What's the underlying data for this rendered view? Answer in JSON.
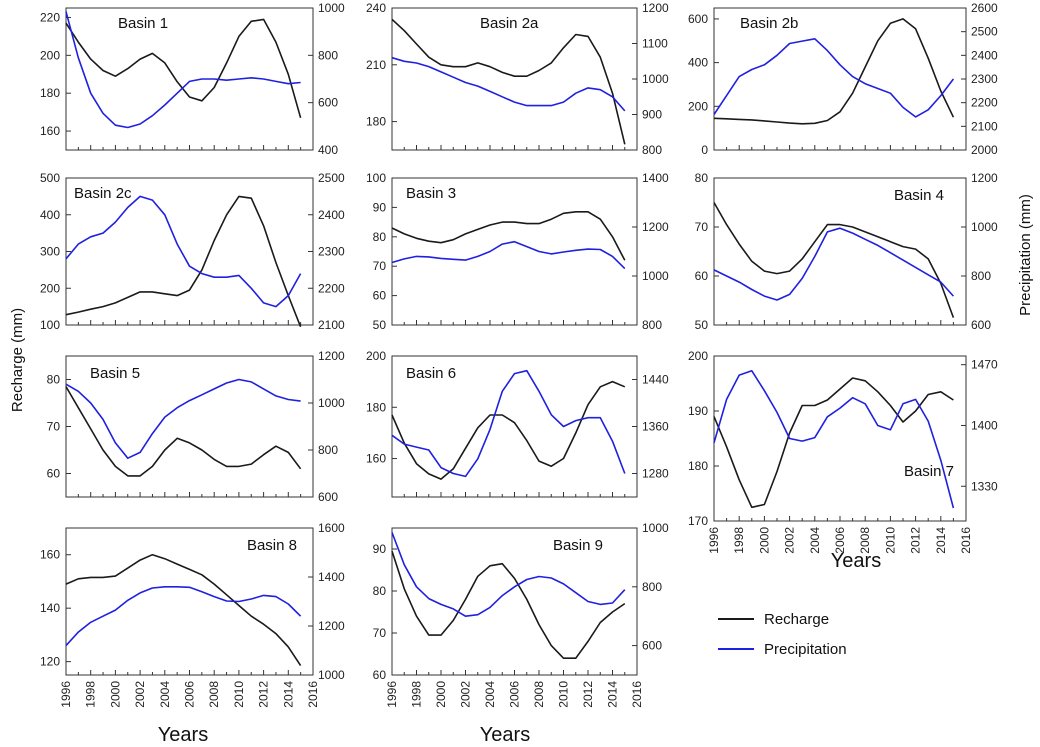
{
  "labels": {
    "recharge_axis": "Recharge (mm)",
    "precip_axis": "Precipitation (mm)",
    "years": "Years"
  },
  "legend": {
    "recharge": "Recharge",
    "precipitation": "Precipitation"
  },
  "colors": {
    "recharge": "#1a1a1a",
    "precipitation": "#2020e0"
  },
  "chart_data": [
    {
      "type": "line",
      "title": "Basin 1",
      "x": [
        1996,
        1997,
        1998,
        1999,
        2000,
        2001,
        2002,
        2003,
        2004,
        2005,
        2006,
        2007,
        2008,
        2009,
        2010,
        2011,
        2012,
        2013,
        2014,
        2015
      ],
      "ylim_left": [
        150,
        225
      ],
      "yticks_left": [
        160,
        180,
        200,
        220
      ],
      "ylim_right": [
        400,
        1000
      ],
      "yticks_right": [
        400,
        600,
        800,
        1000
      ],
      "series": [
        {
          "name": "Recharge",
          "axis": "left",
          "values": [
            217,
            207,
            198,
            192,
            189,
            193,
            198,
            201,
            196,
            186,
            178,
            176,
            183,
            196,
            210,
            218,
            219,
            207,
            190,
            167
          ]
        },
        {
          "name": "Precipitation",
          "axis": "right",
          "values": [
            985,
            790,
            640,
            555,
            505,
            495,
            510,
            545,
            590,
            640,
            690,
            700,
            700,
            695,
            700,
            705,
            700,
            690,
            680,
            685
          ]
        }
      ],
      "show_x_ticks": false
    },
    {
      "type": "line",
      "title": "Basin 2a",
      "x": [
        1996,
        1997,
        1998,
        1999,
        2000,
        2001,
        2002,
        2003,
        2004,
        2005,
        2006,
        2007,
        2008,
        2009,
        2010,
        2011,
        2012,
        2013,
        2014,
        2015
      ],
      "ylim_left": [
        165,
        240
      ],
      "yticks_left": [
        180,
        210,
        240
      ],
      "ylim_right": [
        800,
        1200
      ],
      "yticks_right": [
        800,
        900,
        1000,
        1100,
        1200
      ],
      "series": [
        {
          "name": "Recharge",
          "axis": "left",
          "values": [
            234,
            228,
            221,
            214,
            210,
            209,
            209,
            211,
            209,
            206,
            204,
            204,
            207,
            211,
            219,
            226,
            225,
            214,
            195,
            168
          ]
        },
        {
          "name": "Precipitation",
          "axis": "right",
          "values": [
            1060,
            1050,
            1045,
            1035,
            1020,
            1005,
            990,
            980,
            965,
            950,
            935,
            925,
            925,
            925,
            935,
            960,
            975,
            970,
            950,
            910
          ]
        }
      ],
      "show_x_ticks": false
    },
    {
      "type": "line",
      "title": "Basin 2b",
      "x": [
        1996,
        1997,
        1998,
        1999,
        2000,
        2001,
        2002,
        2003,
        2004,
        2005,
        2006,
        2007,
        2008,
        2009,
        2010,
        2011,
        2012,
        2013,
        2014,
        2015
      ],
      "ylim_left": [
        0,
        650
      ],
      "yticks_left": [
        0,
        200,
        400,
        600
      ],
      "ylim_right": [
        2000,
        2600
      ],
      "yticks_right": [
        2000,
        2100,
        2200,
        2300,
        2400,
        2500,
        2600
      ],
      "series": [
        {
          "name": "Recharge",
          "axis": "left",
          "values": [
            145,
            143,
            140,
            138,
            133,
            128,
            123,
            120,
            122,
            135,
            175,
            260,
            380,
            500,
            580,
            600,
            555,
            420,
            270,
            150
          ]
        },
        {
          "name": "Precipitation",
          "axis": "right",
          "values": [
            2150,
            2230,
            2310,
            2340,
            2360,
            2400,
            2450,
            2460,
            2470,
            2420,
            2360,
            2310,
            2280,
            2260,
            2240,
            2180,
            2140,
            2170,
            2230,
            2300
          ]
        }
      ],
      "show_x_ticks": false
    },
    {
      "type": "line",
      "title": "Basin 2c",
      "x": [
        1996,
        1997,
        1998,
        1999,
        2000,
        2001,
        2002,
        2003,
        2004,
        2005,
        2006,
        2007,
        2008,
        2009,
        2010,
        2011,
        2012,
        2013,
        2014,
        2015
      ],
      "ylim_left": [
        100,
        500
      ],
      "yticks_left": [
        100,
        200,
        300,
        400,
        500
      ],
      "ylim_right": [
        2100,
        2500
      ],
      "yticks_right": [
        2100,
        2200,
        2300,
        2400,
        2500
      ],
      "series": [
        {
          "name": "Recharge",
          "axis": "left",
          "values": [
            128,
            135,
            143,
            150,
            160,
            175,
            190,
            190,
            185,
            180,
            195,
            250,
            330,
            400,
            450,
            445,
            370,
            270,
            180,
            95
          ]
        },
        {
          "name": "Precipitation",
          "axis": "right",
          "values": [
            2280,
            2320,
            2340,
            2350,
            2380,
            2420,
            2450,
            2440,
            2400,
            2320,
            2260,
            2240,
            2230,
            2230,
            2235,
            2200,
            2160,
            2150,
            2180,
            2240
          ]
        }
      ],
      "show_x_ticks": false
    },
    {
      "type": "line",
      "title": "Basin 3",
      "x": [
        1996,
        1997,
        1998,
        1999,
        2000,
        2001,
        2002,
        2003,
        2004,
        2005,
        2006,
        2007,
        2008,
        2009,
        2010,
        2011,
        2012,
        2013,
        2014,
        2015
      ],
      "ylim_left": [
        50,
        100
      ],
      "yticks_left": [
        50,
        60,
        70,
        80,
        90,
        100
      ],
      "ylim_right": [
        800,
        1400
      ],
      "yticks_right": [
        800,
        1000,
        1200,
        1400
      ],
      "series": [
        {
          "name": "Recharge",
          "axis": "left",
          "values": [
            83,
            81,
            79.5,
            78.5,
            78,
            79,
            81,
            82.5,
            84,
            85,
            85,
            84.5,
            84.5,
            86,
            88,
            88.5,
            88.5,
            86,
            80,
            72
          ]
        },
        {
          "name": "Precipitation",
          "axis": "right",
          "values": [
            1055,
            1070,
            1080,
            1078,
            1072,
            1068,
            1065,
            1080,
            1100,
            1130,
            1140,
            1120,
            1100,
            1090,
            1098,
            1105,
            1110,
            1108,
            1080,
            1030
          ]
        }
      ],
      "show_x_ticks": false
    },
    {
      "type": "line",
      "title": "Basin 4",
      "x": [
        1996,
        1997,
        1998,
        1999,
        2000,
        2001,
        2002,
        2003,
        2004,
        2005,
        2006,
        2007,
        2008,
        2009,
        2010,
        2011,
        2012,
        2013,
        2014,
        2015
      ],
      "ylim_left": [
        50,
        80
      ],
      "yticks_left": [
        50,
        60,
        70,
        80
      ],
      "ylim_right": [
        600,
        1200
      ],
      "yticks_right": [
        600,
        800,
        1000,
        1200
      ],
      "series": [
        {
          "name": "Recharge",
          "axis": "left",
          "values": [
            75,
            70.5,
            66.5,
            63,
            61,
            60.5,
            61,
            63.5,
            67,
            70.5,
            70.5,
            70,
            69,
            68,
            67,
            66,
            65.5,
            63.5,
            58.5,
            51.5
          ]
        },
        {
          "name": "Precipitation",
          "axis": "right",
          "values": [
            825,
            800,
            775,
            745,
            718,
            702,
            725,
            790,
            880,
            980,
            995,
            975,
            950,
            925,
            895,
            865,
            835,
            805,
            775,
            718
          ]
        }
      ],
      "show_x_ticks": false
    },
    {
      "type": "line",
      "title": "Basin 5",
      "x": [
        1996,
        1997,
        1998,
        1999,
        2000,
        2001,
        2002,
        2003,
        2004,
        2005,
        2006,
        2007,
        2008,
        2009,
        2010,
        2011,
        2012,
        2013,
        2014,
        2015
      ],
      "ylim_left": [
        55,
        85
      ],
      "yticks_left": [
        60,
        70,
        80
      ],
      "ylim_right": [
        600,
        1200
      ],
      "yticks_right": [
        600,
        800,
        1000,
        1200
      ],
      "series": [
        {
          "name": "Recharge",
          "axis": "left",
          "values": [
            78.5,
            74,
            69.5,
            65,
            61.5,
            59.5,
            59.5,
            61.5,
            65,
            67.5,
            66.5,
            65,
            63,
            61.5,
            61.5,
            62,
            64,
            65.8,
            64.5,
            61
          ]
        },
        {
          "name": "Precipitation",
          "axis": "right",
          "values": [
            1080,
            1050,
            1000,
            930,
            830,
            765,
            790,
            870,
            940,
            980,
            1010,
            1035,
            1060,
            1085,
            1100,
            1090,
            1060,
            1030,
            1015,
            1008
          ]
        }
      ],
      "show_x_ticks": false
    },
    {
      "type": "line",
      "title": "Basin 6",
      "x": [
        1996,
        1997,
        1998,
        1999,
        2000,
        2001,
        2002,
        2003,
        2004,
        2005,
        2006,
        2007,
        2008,
        2009,
        2010,
        2011,
        2012,
        2013,
        2014,
        2015
      ],
      "ylim_left": [
        145,
        200
      ],
      "yticks_left": [
        160,
        180,
        200
      ],
      "ylim_right": [
        1240,
        1480
      ],
      "yticks_right": [
        1280,
        1360,
        1440
      ],
      "series": [
        {
          "name": "Recharge",
          "axis": "left",
          "values": [
            177,
            166,
            158,
            154,
            152,
            156,
            164,
            172,
            177,
            177,
            174,
            167,
            159,
            157,
            160,
            170,
            181,
            188,
            190,
            188
          ]
        },
        {
          "name": "Precipitation",
          "axis": "right",
          "values": [
            1345,
            1330,
            1325,
            1320,
            1290,
            1280,
            1275,
            1305,
            1355,
            1420,
            1450,
            1455,
            1420,
            1380,
            1360,
            1370,
            1375,
            1375,
            1335,
            1280
          ]
        }
      ],
      "show_x_ticks": false
    },
    {
      "type": "line",
      "title": "Basin 7",
      "x": [
        1996,
        1997,
        1998,
        1999,
        2000,
        2001,
        2002,
        2003,
        2004,
        2005,
        2006,
        2007,
        2008,
        2009,
        2010,
        2011,
        2012,
        2013,
        2014,
        2015
      ],
      "ylim_left": [
        170,
        200
      ],
      "yticks_left": [
        170,
        180,
        190,
        200
      ],
      "ylim_right": [
        1290,
        1480
      ],
      "yticks_right": [
        1330,
        1400,
        1470
      ],
      "series": [
        {
          "name": "Recharge",
          "axis": "left",
          "values": [
            189,
            183.5,
            177.5,
            172.5,
            173,
            179,
            186,
            191,
            191,
            192,
            194,
            196,
            195.5,
            193.5,
            191,
            188,
            190,
            193,
            193.5,
            192
          ]
        },
        {
          "name": "Precipitation",
          "axis": "right",
          "values": [
            1380,
            1430,
            1458,
            1463,
            1440,
            1415,
            1385,
            1382,
            1386,
            1410,
            1420,
            1432,
            1425,
            1400,
            1395,
            1425,
            1430,
            1405,
            1360,
            1305
          ]
        }
      ],
      "show_x_ticks": true
    },
    {
      "type": "line",
      "title": "Basin 8",
      "x": [
        1996,
        1997,
        1998,
        1999,
        2000,
        2001,
        2002,
        2003,
        2004,
        2005,
        2006,
        2007,
        2008,
        2009,
        2010,
        2011,
        2012,
        2013,
        2014,
        2015
      ],
      "ylim_left": [
        115,
        170
      ],
      "yticks_left": [
        120,
        140,
        160
      ],
      "ylim_right": [
        1000,
        1600
      ],
      "yticks_right": [
        1000,
        1200,
        1400,
        1600
      ],
      "series": [
        {
          "name": "Recharge",
          "axis": "left",
          "values": [
            149,
            151,
            151.5,
            151.5,
            152,
            155,
            158,
            160,
            158.5,
            156.5,
            154.5,
            152.5,
            149,
            145,
            141,
            137,
            134,
            130.5,
            125.5,
            118.5
          ]
        },
        {
          "name": "Precipitation",
          "axis": "right",
          "values": [
            1120,
            1175,
            1215,
            1240,
            1265,
            1305,
            1335,
            1355,
            1360,
            1360,
            1358,
            1340,
            1320,
            1302,
            1300,
            1310,
            1325,
            1320,
            1290,
            1240
          ]
        }
      ],
      "show_x_ticks": true
    },
    {
      "type": "line",
      "title": "Basin 9",
      "x": [
        1996,
        1997,
        1998,
        1999,
        2000,
        2001,
        2002,
        2003,
        2004,
        2005,
        2006,
        2007,
        2008,
        2009,
        2010,
        2011,
        2012,
        2013,
        2014,
        2015
      ],
      "ylim_left": [
        60,
        95
      ],
      "yticks_left": [
        60,
        70,
        80,
        90
      ],
      "ylim_right": [
        500,
        1000
      ],
      "yticks_right": [
        600,
        800,
        1000
      ],
      "series": [
        {
          "name": "Recharge",
          "axis": "left",
          "values": [
            89.5,
            80.5,
            74,
            69.5,
            69.5,
            73,
            78,
            83.5,
            86,
            86.5,
            83,
            78,
            72,
            67,
            64,
            64,
            68,
            72.5,
            75,
            77
          ]
        },
        {
          "name": "Precipitation",
          "axis": "right",
          "values": [
            985,
            875,
            800,
            760,
            740,
            725,
            700,
            705,
            730,
            770,
            800,
            825,
            835,
            830,
            810,
            780,
            750,
            740,
            745,
            790
          ]
        }
      ],
      "show_x_ticks": true
    }
  ]
}
